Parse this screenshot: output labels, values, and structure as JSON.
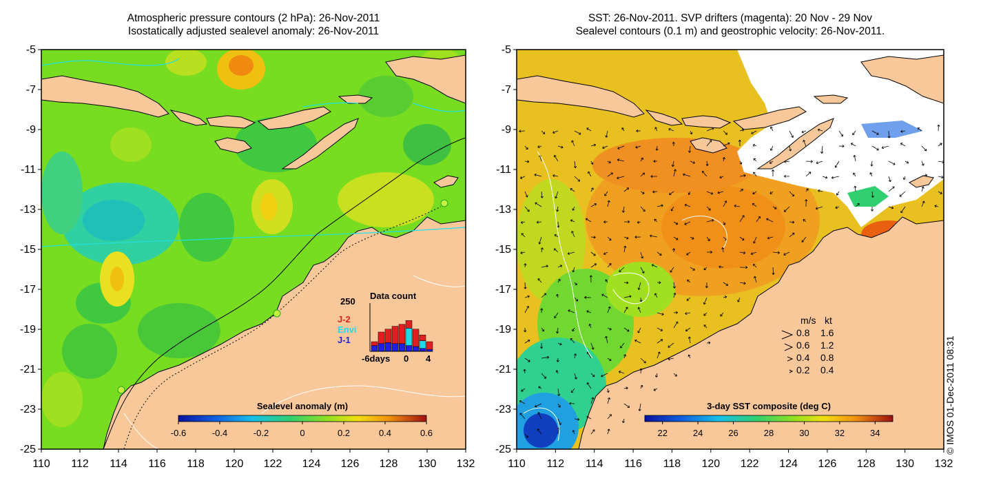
{
  "left_panel": {
    "title_line1": "Atmospheric pressure contours (2 hPa): 26-Nov-2011",
    "title_line2": "Isostatically adjusted sealevel anomaly: 26-Nov-2011",
    "colorbar_title": "Sealevel anomaly (m)",
    "colorbar_ticks": [
      "-0.6",
      "-0.4",
      "-0.2",
      "0",
      "0.2",
      "0.4",
      "0.6"
    ],
    "colorbar_range": [
      -0.6,
      0.6
    ],
    "inset": {
      "title": "Data count",
      "ymax_label": "250",
      "legend": [
        {
          "label": "J-2",
          "color": "#e02020"
        },
        {
          "label": "Envi",
          "color": "#20d8e8"
        },
        {
          "label": "J-1",
          "color": "#2020e0"
        }
      ],
      "x_tick_labels": [
        "-6days",
        "0",
        "4"
      ],
      "bars_j1": [
        30,
        40,
        45,
        40,
        40,
        30,
        25,
        15,
        10
      ],
      "bars_envi": [
        0,
        0,
        0,
        0,
        0,
        90,
        0,
        40,
        0
      ],
      "bars_j2": [
        20,
        60,
        70,
        90,
        100,
        40,
        90,
        30,
        40
      ]
    }
  },
  "right_panel": {
    "title_line1": "SST: 26-Nov-2011. SVP drifters (magenta): 20 Nov - 29 Nov",
    "title_line2": "Sealevel contours (0.1 m) and geostrophic velocity: 26-Nov-2011.",
    "colorbar_title": "3-day SST composite (deg C)",
    "colorbar_ticks": [
      "22",
      "24",
      "26",
      "28",
      "30",
      "32",
      "34"
    ],
    "colorbar_range": [
      21,
      35
    ],
    "velocity_legend": {
      "header_ms": "m/s",
      "header_kt": "kt",
      "rows": [
        {
          "ms": "0.8",
          "kt": "1.6"
        },
        {
          "ms": "0.6",
          "kt": "1.2"
        },
        {
          "ms": "0.4",
          "kt": "0.8"
        },
        {
          "ms": "0.2",
          "kt": "0.4"
        }
      ]
    }
  },
  "axes": {
    "x_ticks": [
      "110",
      "112",
      "114",
      "116",
      "118",
      "120",
      "122",
      "124",
      "126",
      "128",
      "130",
      "132"
    ],
    "y_ticks": [
      "-5",
      "-7",
      "-9",
      "-11",
      "-13",
      "-15",
      "-17",
      "-19",
      "-21",
      "-23",
      "-25"
    ],
    "lon_range": [
      110,
      132
    ],
    "lat_range": [
      -25,
      -5
    ]
  },
  "credit": "© IMOS 01-Dec-2011 08:31",
  "colors": {
    "land": "#f8c89a",
    "ocean_left": "#80e020",
    "ocean_right": "#f0a020",
    "contour_white": "#ffffff"
  }
}
